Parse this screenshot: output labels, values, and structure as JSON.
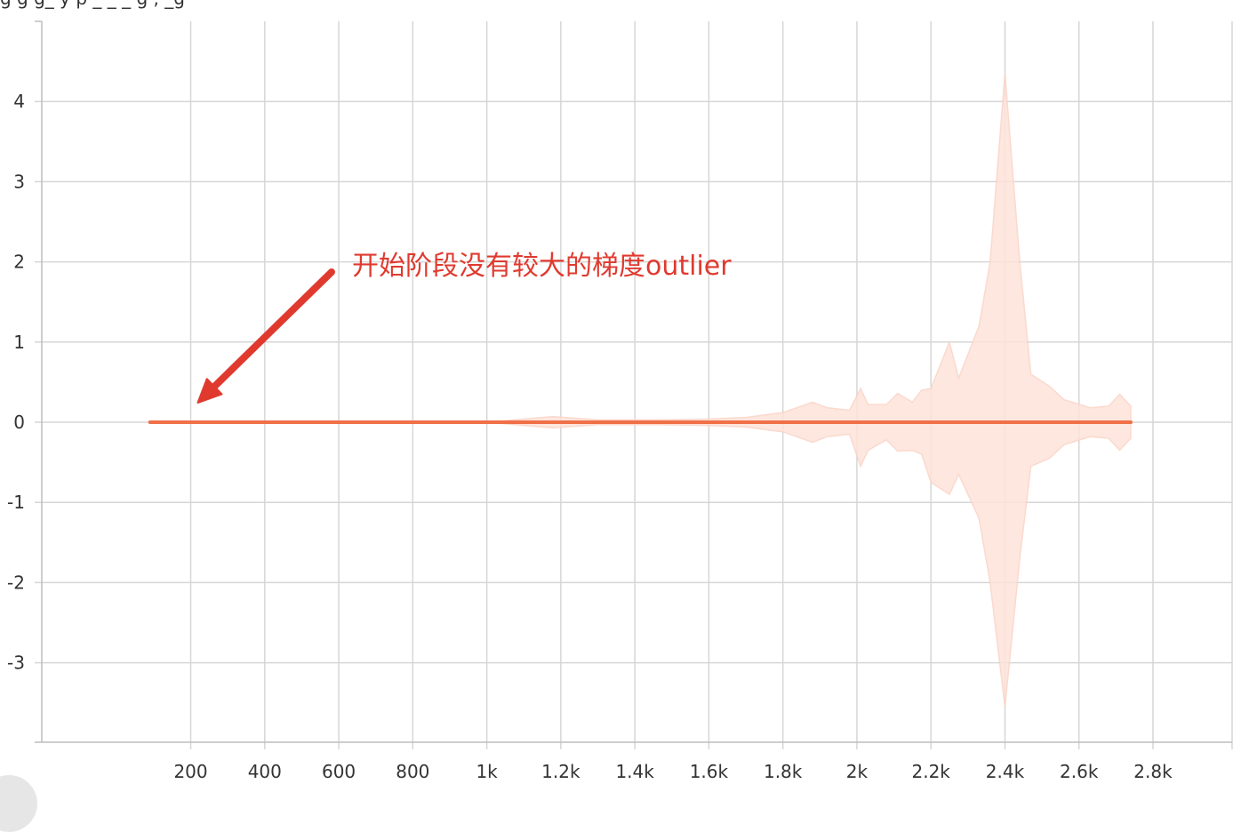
{
  "header": {
    "truncated_title": "g                  g  g_                  y        p         _ _ _      g     ,      _g"
  },
  "annotation": {
    "text": "开始阶段没有较大的梯度outlier",
    "arrow_target": {
      "x": 200,
      "y": 0
    },
    "color": "#e03a2f"
  },
  "colors": {
    "line": "#f07048",
    "band": "#fde3da",
    "band_edge": "#fbd3c6",
    "grid": "#d6d6d6",
    "annotation": "#e03a2f"
  },
  "chart_data": {
    "type": "area",
    "xlim": [
      -200,
      2800
    ],
    "ylim": [
      -4.0,
      4.9
    ],
    "grid": true,
    "legend": "none",
    "x_ticks": [
      {
        "value": 200,
        "label": "200"
      },
      {
        "value": 400,
        "label": "400"
      },
      {
        "value": 600,
        "label": "600"
      },
      {
        "value": 800,
        "label": "800"
      },
      {
        "value": 1000,
        "label": "1k"
      },
      {
        "value": 1200,
        "label": "1.2k"
      },
      {
        "value": 1400,
        "label": "1.4k"
      },
      {
        "value": 1600,
        "label": "1.6k"
      },
      {
        "value": 1800,
        "label": "1.8k"
      },
      {
        "value": 2000,
        "label": "2k"
      },
      {
        "value": 2200,
        "label": "2.2k"
      },
      {
        "value": 2400,
        "label": "2.4k"
      },
      {
        "value": 2600,
        "label": "2.6k"
      },
      {
        "value": 2800,
        "label": "2.8k"
      }
    ],
    "y_ticks": [
      {
        "value": 4,
        "label": "4"
      },
      {
        "value": 3,
        "label": "3"
      },
      {
        "value": 2,
        "label": "2"
      },
      {
        "value": 1,
        "label": "1"
      },
      {
        "value": 0,
        "label": "0"
      },
      {
        "value": -1,
        "label": "-1"
      },
      {
        "value": -2,
        "label": "-2"
      },
      {
        "value": -3,
        "label": "-3"
      }
    ],
    "series": [
      {
        "kind": "mean-line",
        "x": [
          90,
          2740
        ],
        "y": [
          0,
          0
        ]
      },
      {
        "kind": "band",
        "points": [
          {
            "x": 90,
            "upper": 0,
            "lower": 0
          },
          {
            "x": 1000,
            "upper": 0,
            "lower": 0
          },
          {
            "x": 1100,
            "upper": 0.04,
            "lower": -0.04
          },
          {
            "x": 1180,
            "upper": 0.07,
            "lower": -0.07
          },
          {
            "x": 1300,
            "upper": 0.03,
            "lower": -0.03
          },
          {
            "x": 1450,
            "upper": 0.03,
            "lower": -0.03
          },
          {
            "x": 1600,
            "upper": 0.04,
            "lower": -0.04
          },
          {
            "x": 1700,
            "upper": 0.06,
            "lower": -0.06
          },
          {
            "x": 1800,
            "upper": 0.12,
            "lower": -0.12
          },
          {
            "x": 1880,
            "upper": 0.25,
            "lower": -0.25
          },
          {
            "x": 1920,
            "upper": 0.18,
            "lower": -0.18
          },
          {
            "x": 1980,
            "upper": 0.15,
            "lower": -0.15
          },
          {
            "x": 2010,
            "upper": 0.42,
            "lower": -0.55
          },
          {
            "x": 2030,
            "upper": 0.22,
            "lower": -0.35
          },
          {
            "x": 2080,
            "upper": 0.22,
            "lower": -0.22
          },
          {
            "x": 2110,
            "upper": 0.36,
            "lower": -0.36
          },
          {
            "x": 2150,
            "upper": 0.25,
            "lower": -0.35
          },
          {
            "x": 2175,
            "upper": 0.4,
            "lower": -0.4
          },
          {
            "x": 2200,
            "upper": 0.42,
            "lower": -0.75
          },
          {
            "x": 2250,
            "upper": 1.0,
            "lower": -0.9
          },
          {
            "x": 2275,
            "upper": 0.55,
            "lower": -0.65
          },
          {
            "x": 2330,
            "upper": 1.2,
            "lower": -1.2
          },
          {
            "x": 2360,
            "upper": 2.0,
            "lower": -2.0
          },
          {
            "x": 2400,
            "upper": 4.35,
            "lower": -3.55
          },
          {
            "x": 2440,
            "upper": 2.0,
            "lower": -1.7
          },
          {
            "x": 2470,
            "upper": 0.6,
            "lower": -0.55
          },
          {
            "x": 2520,
            "upper": 0.45,
            "lower": -0.45
          },
          {
            "x": 2560,
            "upper": 0.28,
            "lower": -0.28
          },
          {
            "x": 2630,
            "upper": 0.18,
            "lower": -0.18
          },
          {
            "x": 2680,
            "upper": 0.2,
            "lower": -0.2
          },
          {
            "x": 2710,
            "upper": 0.35,
            "lower": -0.35
          },
          {
            "x": 2740,
            "upper": 0.2,
            "lower": -0.2
          }
        ]
      }
    ]
  }
}
